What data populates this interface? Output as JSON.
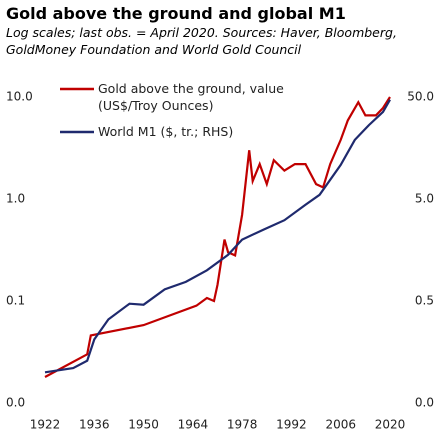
{
  "chart_data": {
    "type": "line",
    "title": "Gold above the ground  and global M1",
    "subtitle": "Log scales; last obs. = April 2020. Sources: Haver, Bloomberg, GoldMoney Foundation and World Gold Council",
    "log_scale": true,
    "grid": false,
    "legend": "top-left",
    "xlim": [
      1922,
      2020
    ],
    "xticks": [
      1922,
      1936,
      1950,
      1964,
      1978,
      1992,
      2006,
      2020
    ],
    "ylim": [
      0.01,
      10
    ],
    "yticks": [
      {
        "value": 0.01,
        "label": "0.0"
      },
      {
        "value": 0.1,
        "label": "0.1"
      },
      {
        "value": 1,
        "label": "1.0"
      },
      {
        "value": 10,
        "label": "10.0"
      }
    ],
    "y2lim": [
      0.05,
      50
    ],
    "y2ticks": [
      {
        "value": 0.05,
        "label": "0.0"
      },
      {
        "value": 0.5,
        "label": "0.5"
      },
      {
        "value": 5,
        "label": "5.0"
      },
      {
        "value": 50,
        "label": "50.0"
      }
    ],
    "series": [
      {
        "name": "Gold above the ground, value (US$/Troy Ounces)",
        "color": "#c00000",
        "x": [
          1922,
          1934,
          1935,
          1950,
          1965,
          1968,
          1970,
          1971,
          1973,
          1974,
          1976,
          1978,
          1980,
          1981,
          1983,
          1985,
          1987,
          1990,
          1993,
          1996,
          1999,
          2001,
          2003,
          2006,
          2008,
          2011,
          2013,
          2016,
          2018,
          2020
        ],
        "values": [
          0.018,
          0.03,
          0.046,
          0.058,
          0.09,
          0.107,
          0.1,
          0.144,
          0.4,
          0.3,
          0.28,
          0.7,
          3.0,
          1.5,
          2.2,
          1.4,
          2.4,
          1.9,
          2.2,
          2.2,
          1.4,
          1.3,
          2.2,
          3.8,
          5.9,
          8.9,
          6.6,
          6.6,
          7.8,
          10
        ]
      },
      {
        "name": "World M1 ($, tr.; RHS)",
        "color": "#1f2a6e",
        "axis": "y2",
        "x": [
          1922,
          1930,
          1934,
          1936,
          1940,
          1946,
          1950,
          1956,
          1962,
          1968,
          1974,
          1978,
          1984,
          1990,
          1996,
          2000,
          2006,
          2010,
          2014,
          2018,
          2020
        ],
        "values": [
          0.1,
          0.11,
          0.13,
          0.21,
          0.33,
          0.47,
          0.46,
          0.65,
          0.77,
          1.0,
          1.42,
          2.0,
          2.5,
          3.1,
          4.4,
          5.5,
          10.8,
          19,
          26.5,
          35.7,
          47
        ]
      }
    ]
  }
}
